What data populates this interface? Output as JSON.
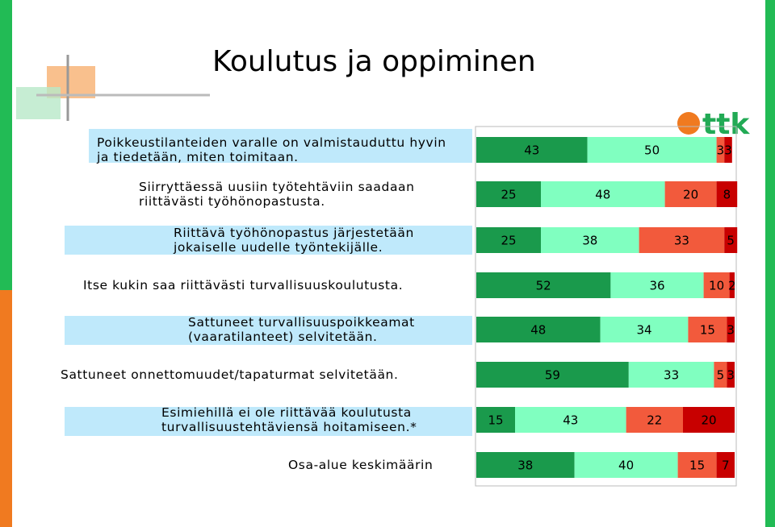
{
  "title": "Koulutus ja oppiminen",
  "logo": "ttk",
  "chart_data": {
    "type": "stacked-bar-horizontal",
    "categories": [
      "Poikkeustilanteiden varalle on valmistauduttu hyvin\nja tiedetään, miten toimitaan.",
      "Siirryttäessä uusiin työtehtäviin saadaan\nriittävästi työhönopastusta.",
      "Riittävä työhönopastus järjestetään\njokaiselle uudelle työntekijälle.",
      "Itse kukin saa riittävästi turvallisuuskoulutusta.",
      "Sattuneet turvallisuuspoikkeamat\n(vaaratilanteet) selvitetään.",
      "Sattuneet onnettomuudet/tapaturmat selvitetään.",
      "Esimiehillä ei ole riittävää koulutusta\nturvallisuustehtäviensä hoitamiseen.*",
      "Osa-alue keskimäärin"
    ],
    "xlim": [
      0,
      100
    ],
    "series": [
      {
        "color": "#1a9a4c",
        "values": [
          43,
          25,
          25,
          52,
          48,
          59,
          15,
          38
        ]
      },
      {
        "color": "#80ffc0",
        "values": [
          50,
          48,
          38,
          36,
          34,
          33,
          43,
          40
        ]
      },
      {
        "color": "#f25a3c",
        "values": [
          3,
          20,
          33,
          10,
          15,
          5,
          22,
          15
        ]
      },
      {
        "color": "#c80000",
        "values": [
          3,
          8,
          5,
          2,
          3,
          3,
          20,
          7
        ]
      }
    ]
  }
}
